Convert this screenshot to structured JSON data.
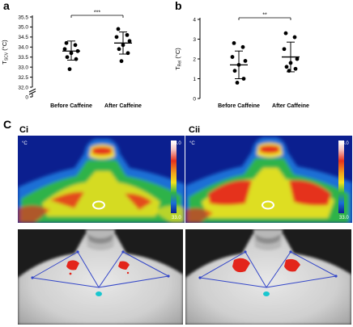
{
  "panels": {
    "a_letter": "a",
    "b_letter": "b",
    "c_letter": "C",
    "ci_label": "Ci",
    "cii_label": "Cii"
  },
  "chart_data": [
    {
      "id": "a",
      "type": "scatter",
      "title": "",
      "ylabel": "T",
      "ylabel_subscript": "SCV",
      "ylabel_unit": "(°C)",
      "xlabel": "",
      "categories": [
        "Before Caffeine",
        "After Caffeine"
      ],
      "ylim": [
        32.0,
        35.5
      ],
      "axis_break": true,
      "yticks": [
        "32.0",
        "32.5",
        "33.0",
        "33.5",
        "34.0",
        "34.5",
        "35.0",
        "35.5"
      ],
      "ytick_values": [
        32.0,
        32.5,
        33.0,
        33.5,
        34.0,
        34.5,
        35.0,
        35.5
      ],
      "series": [
        {
          "category": "Before Caffeine",
          "values": [
            34.2,
            34.1,
            33.9,
            33.8,
            33.7,
            33.5,
            33.4,
            32.9
          ],
          "mean": 33.8,
          "sd_low": 33.35,
          "sd_high": 34.3
        },
        {
          "category": "After Caffeine",
          "values": [
            34.9,
            34.6,
            34.5,
            34.3,
            34.1,
            33.9,
            33.7,
            33.3
          ],
          "mean": 34.2,
          "sd_low": 33.65,
          "sd_high": 34.75
        }
      ],
      "significance": "***",
      "grid": false
    },
    {
      "id": "b",
      "type": "scatter",
      "title": "",
      "ylabel": "T",
      "ylabel_subscript": "Rel",
      "ylabel_unit": "(°C)",
      "xlabel": "",
      "categories": [
        "Before Caffeine",
        "After Caffeine"
      ],
      "ylim": [
        0,
        4
      ],
      "yticks": [
        "0",
        "1",
        "2",
        "3",
        "4"
      ],
      "ytick_values": [
        0,
        1,
        2,
        3,
        4
      ],
      "series": [
        {
          "category": "Before Caffeine",
          "values": [
            2.8,
            2.6,
            2.1,
            1.9,
            1.7,
            1.4,
            1.0,
            0.8
          ],
          "mean": 1.7,
          "sd_low": 1.0,
          "sd_high": 2.4
        },
        {
          "category": "After Caffeine",
          "values": [
            3.3,
            3.1,
            2.5,
            2.0,
            1.8,
            1.6,
            1.5,
            1.4
          ],
          "mean": 2.1,
          "sd_low": 1.35,
          "sd_high": 2.85
        }
      ],
      "significance": "**",
      "grid": false
    }
  ],
  "thermal": {
    "unit_label": "°C",
    "scale_max": "38.0",
    "scale_min": "33.0",
    "colors": {
      "cold": "#0b1f8f",
      "cool": "#1a6fd6",
      "mid": "#2fb34a",
      "warm": "#f2e21c",
      "hot": "#e5321d",
      "roi": "#ffffff"
    }
  },
  "annotation": {
    "line_color": "#3346c8",
    "hotspot_color": "#e3251b",
    "marker_color": "#19c6cf"
  }
}
